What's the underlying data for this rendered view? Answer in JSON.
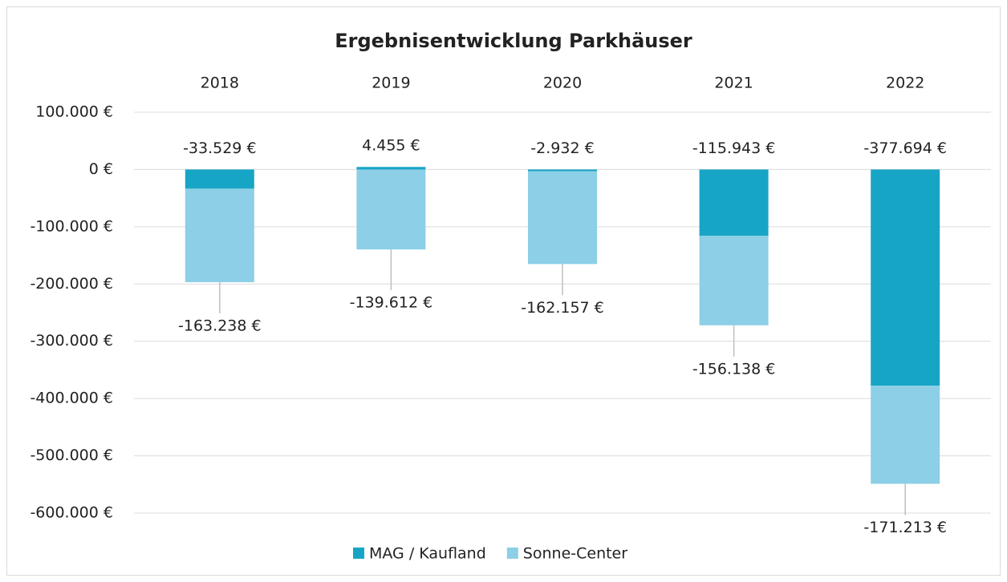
{
  "chart_data": {
    "type": "bar",
    "stacked": true,
    "title": "Ergebnisentwicklung Parkhäuser",
    "categories": [
      "2018",
      "2019",
      "2020",
      "2021",
      "2022"
    ],
    "series": [
      {
        "name": "MAG / Kaufland",
        "color": "#17a5c6",
        "values": [
          -33529,
          4455,
          -2932,
          -115943,
          -377694
        ],
        "value_labels": [
          "-33.529 €",
          "4.455 €",
          "-2.932 €",
          "-115.943 €",
          "-377.694 €"
        ]
      },
      {
        "name": "Sonne-Center",
        "color": "#8ccfe6",
        "values": [
          -163238,
          -139612,
          -162157,
          -156138,
          -171213
        ],
        "value_labels": [
          "-163.238 €",
          "-139.612 €",
          "-162.157 €",
          "-156.138 €",
          "-171.213 €"
        ]
      }
    ],
    "ylim": [
      -600000,
      100000
    ],
    "yticks": [
      {
        "value": 100000,
        "label": "100.000 €"
      },
      {
        "value": 0,
        "label": "0 €"
      },
      {
        "value": -100000,
        "label": "-100.000 €"
      },
      {
        "value": -200000,
        "label": "-200.000 €"
      },
      {
        "value": -300000,
        "label": "-300.000 €"
      },
      {
        "value": -400000,
        "label": "-400.000 €"
      },
      {
        "value": -500000,
        "label": "-500.000 €"
      },
      {
        "value": -600000,
        "label": "-600.000 €"
      }
    ],
    "grid": true,
    "legend": "bottom"
  }
}
